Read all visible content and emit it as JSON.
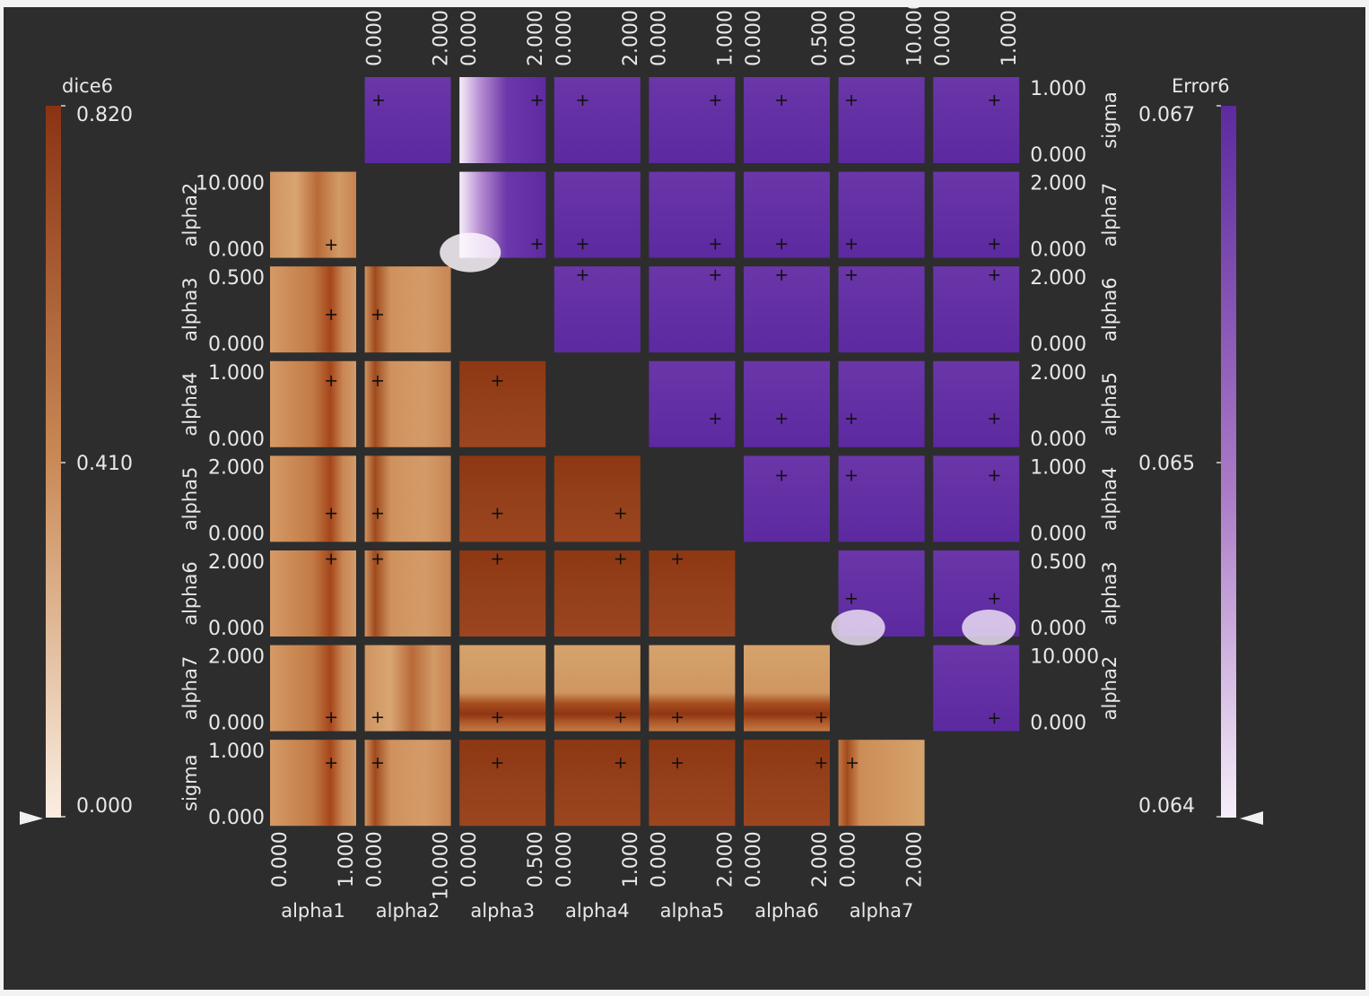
{
  "chart_data": {
    "type": "heatmap",
    "variables": [
      "alpha1",
      "alpha2",
      "alpha3",
      "alpha4",
      "alpha5",
      "alpha6",
      "alpha7",
      "sigma"
    ],
    "ranges": {
      "alpha1": [
        "0.000",
        "1.000"
      ],
      "alpha2": [
        "0.000",
        "10.000"
      ],
      "alpha3": [
        "0.000",
        "0.500"
      ],
      "alpha4": [
        "0.000",
        "1.000"
      ],
      "alpha5": [
        "0.000",
        "2.000"
      ],
      "alpha6": [
        "0.000",
        "2.000"
      ],
      "alpha7": [
        "0.000",
        "2.000"
      ],
      "sigma": [
        "0.000",
        "1.000"
      ]
    },
    "reference_point": {
      "alpha1": 0.71,
      "alpha2": 0.15,
      "alpha3": 0.44,
      "alpha4": 0.77,
      "alpha5": 0.33,
      "alpha6": 0.9,
      "alpha7": 0.16,
      "sigma": 0.73
    },
    "left_colorbar": {
      "title": "dice6",
      "min": "0.000",
      "mid": "0.410",
      "max": "0.820",
      "color_low": "#fbeee2",
      "color_mid": "#c98a57",
      "color_high": "#8a3314"
    },
    "right_colorbar": {
      "title": "Error6",
      "min": "0.064",
      "mid": "0.065",
      "max": "0.067",
      "color_low": "#f6eef9",
      "color_mid": "#ac7cc8",
      "color_high": "#5e2a9f"
    },
    "lower_triangle": "dice6",
    "upper_triangle": "Error6",
    "background": "#2d2d2d"
  }
}
